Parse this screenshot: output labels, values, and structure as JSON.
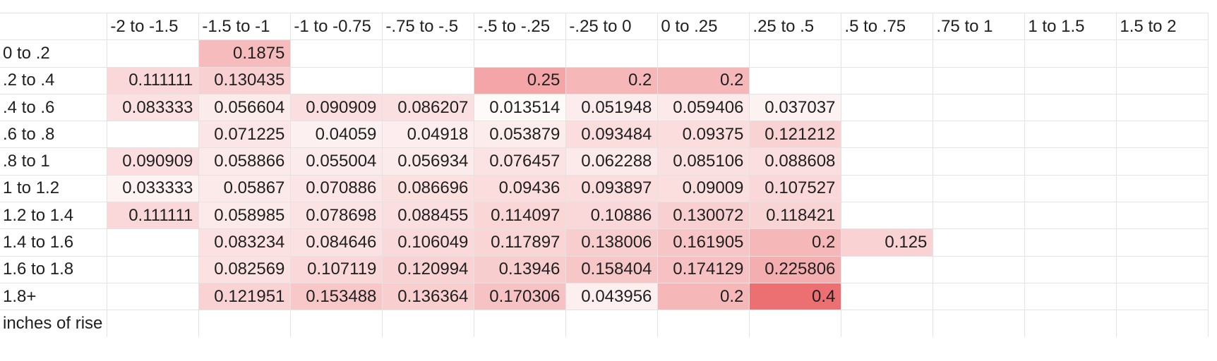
{
  "sheet": {
    "corner": "",
    "column_headers": [
      "-2 to -1.5",
      "-1.5 to -1",
      "-1 to -0.75",
      "-.75 to -.5",
      "-.5 to -.25",
      "-.25 to 0",
      "0 to .25",
      ".25 to .5",
      ".5 to .75",
      ".75 to 1",
      "1 to 1.5",
      "1.5 to 2"
    ],
    "rows": [
      {
        "label": "0 to .2",
        "cells": [
          "",
          "0.1875",
          "",
          "",
          "",
          "",
          "",
          "",
          "",
          "",
          "",
          ""
        ]
      },
      {
        "label": ".2 to .4",
        "cells": [
          "0.111111",
          "0.130435",
          "",
          "",
          "0.25",
          "0.2",
          "0.2",
          "",
          "",
          "",
          "",
          ""
        ]
      },
      {
        "label": ".4 to .6",
        "cells": [
          "0.083333",
          "0.056604",
          "0.090909",
          "0.086207",
          "0.013514",
          "0.051948",
          "0.059406",
          "0.037037",
          "",
          "",
          "",
          ""
        ]
      },
      {
        "label": ".6 to .8",
        "cells": [
          "",
          "0.071225",
          "0.04059",
          "0.04918",
          "0.053879",
          "0.093484",
          "0.09375",
          "0.121212",
          "",
          "",
          "",
          ""
        ]
      },
      {
        "label": ".8 to 1",
        "cells": [
          "0.090909",
          "0.058866",
          "0.055004",
          "0.056934",
          "0.076457",
          "0.062288",
          "0.085106",
          "0.088608",
          "",
          "",
          "",
          ""
        ]
      },
      {
        "label": "1 to 1.2",
        "cells": [
          "0.033333",
          "0.05867",
          "0.070886",
          "0.086696",
          "0.09436",
          "0.093897",
          "0.09009",
          "0.107527",
          "",
          "",
          "",
          ""
        ]
      },
      {
        "label": "1.2 to 1.4",
        "cells": [
          "0.111111",
          "0.058985",
          "0.078698",
          "0.088455",
          "0.114097",
          "0.10886",
          "0.130072",
          "0.118421",
          "",
          "",
          "",
          ""
        ]
      },
      {
        "label": "1.4 to 1.6",
        "cells": [
          "",
          "0.083234",
          "0.084646",
          "0.106049",
          "0.117897",
          "0.138006",
          "0.161905",
          "0.2",
          "0.125",
          "",
          "",
          ""
        ]
      },
      {
        "label": "1.6 to 1.8",
        "cells": [
          "",
          "0.082569",
          "0.107119",
          "0.120994",
          "0.13946",
          "0.158404",
          "0.174129",
          "0.225806",
          "",
          "",
          "",
          ""
        ]
      },
      {
        "label": "1.8+",
        "cells": [
          "",
          "0.121951",
          "0.153488",
          "0.136364",
          "0.170306",
          "0.043956",
          "0.2",
          "0.4",
          "",
          "",
          "",
          ""
        ]
      },
      {
        "label": "inches of rise",
        "cells": [
          "",
          "",
          "",
          "",
          "",
          "",
          "",
          "",
          "",
          "",
          "",
          ""
        ]
      }
    ]
  },
  "heat_colors": {
    "low": "#ffffff",
    "high": "#ec6f72"
  }
}
